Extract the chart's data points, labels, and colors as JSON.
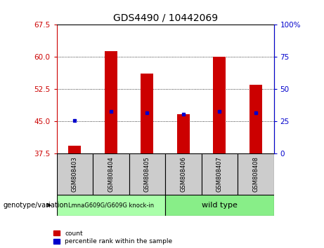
{
  "title": "GDS4490 / 10442069",
  "samples": [
    "GSM808403",
    "GSM808404",
    "GSM808405",
    "GSM808406",
    "GSM808407",
    "GSM808408"
  ],
  "count_values": [
    39.3,
    61.3,
    56.2,
    46.7,
    60.0,
    53.5
  ],
  "percentile_left": [
    45.2,
    47.3,
    47.0,
    46.7,
    47.3,
    47.0
  ],
  "ylim_left": [
    37.5,
    67.5
  ],
  "ylim_right": [
    0,
    100
  ],
  "yticks_left": [
    37.5,
    45.0,
    52.5,
    60.0,
    67.5
  ],
  "yticks_right": [
    0,
    25,
    50,
    75,
    100
  ],
  "bar_bottom": 37.5,
  "bar_color": "#cc0000",
  "dot_color": "#0000cc",
  "group1_label": "LmnaG609G/G609G knock-in",
  "group2_label": "wild type",
  "group1_color": "#aaffaa",
  "group2_color": "#88ee88",
  "genotype_label": "genotype/variation",
  "legend_count": "count",
  "legend_pct": "percentile rank within the sample",
  "sample_bg_color": "#cccccc",
  "left_tick_color": "#cc0000",
  "right_tick_color": "#0000cc",
  "bg_color": "#ffffff"
}
